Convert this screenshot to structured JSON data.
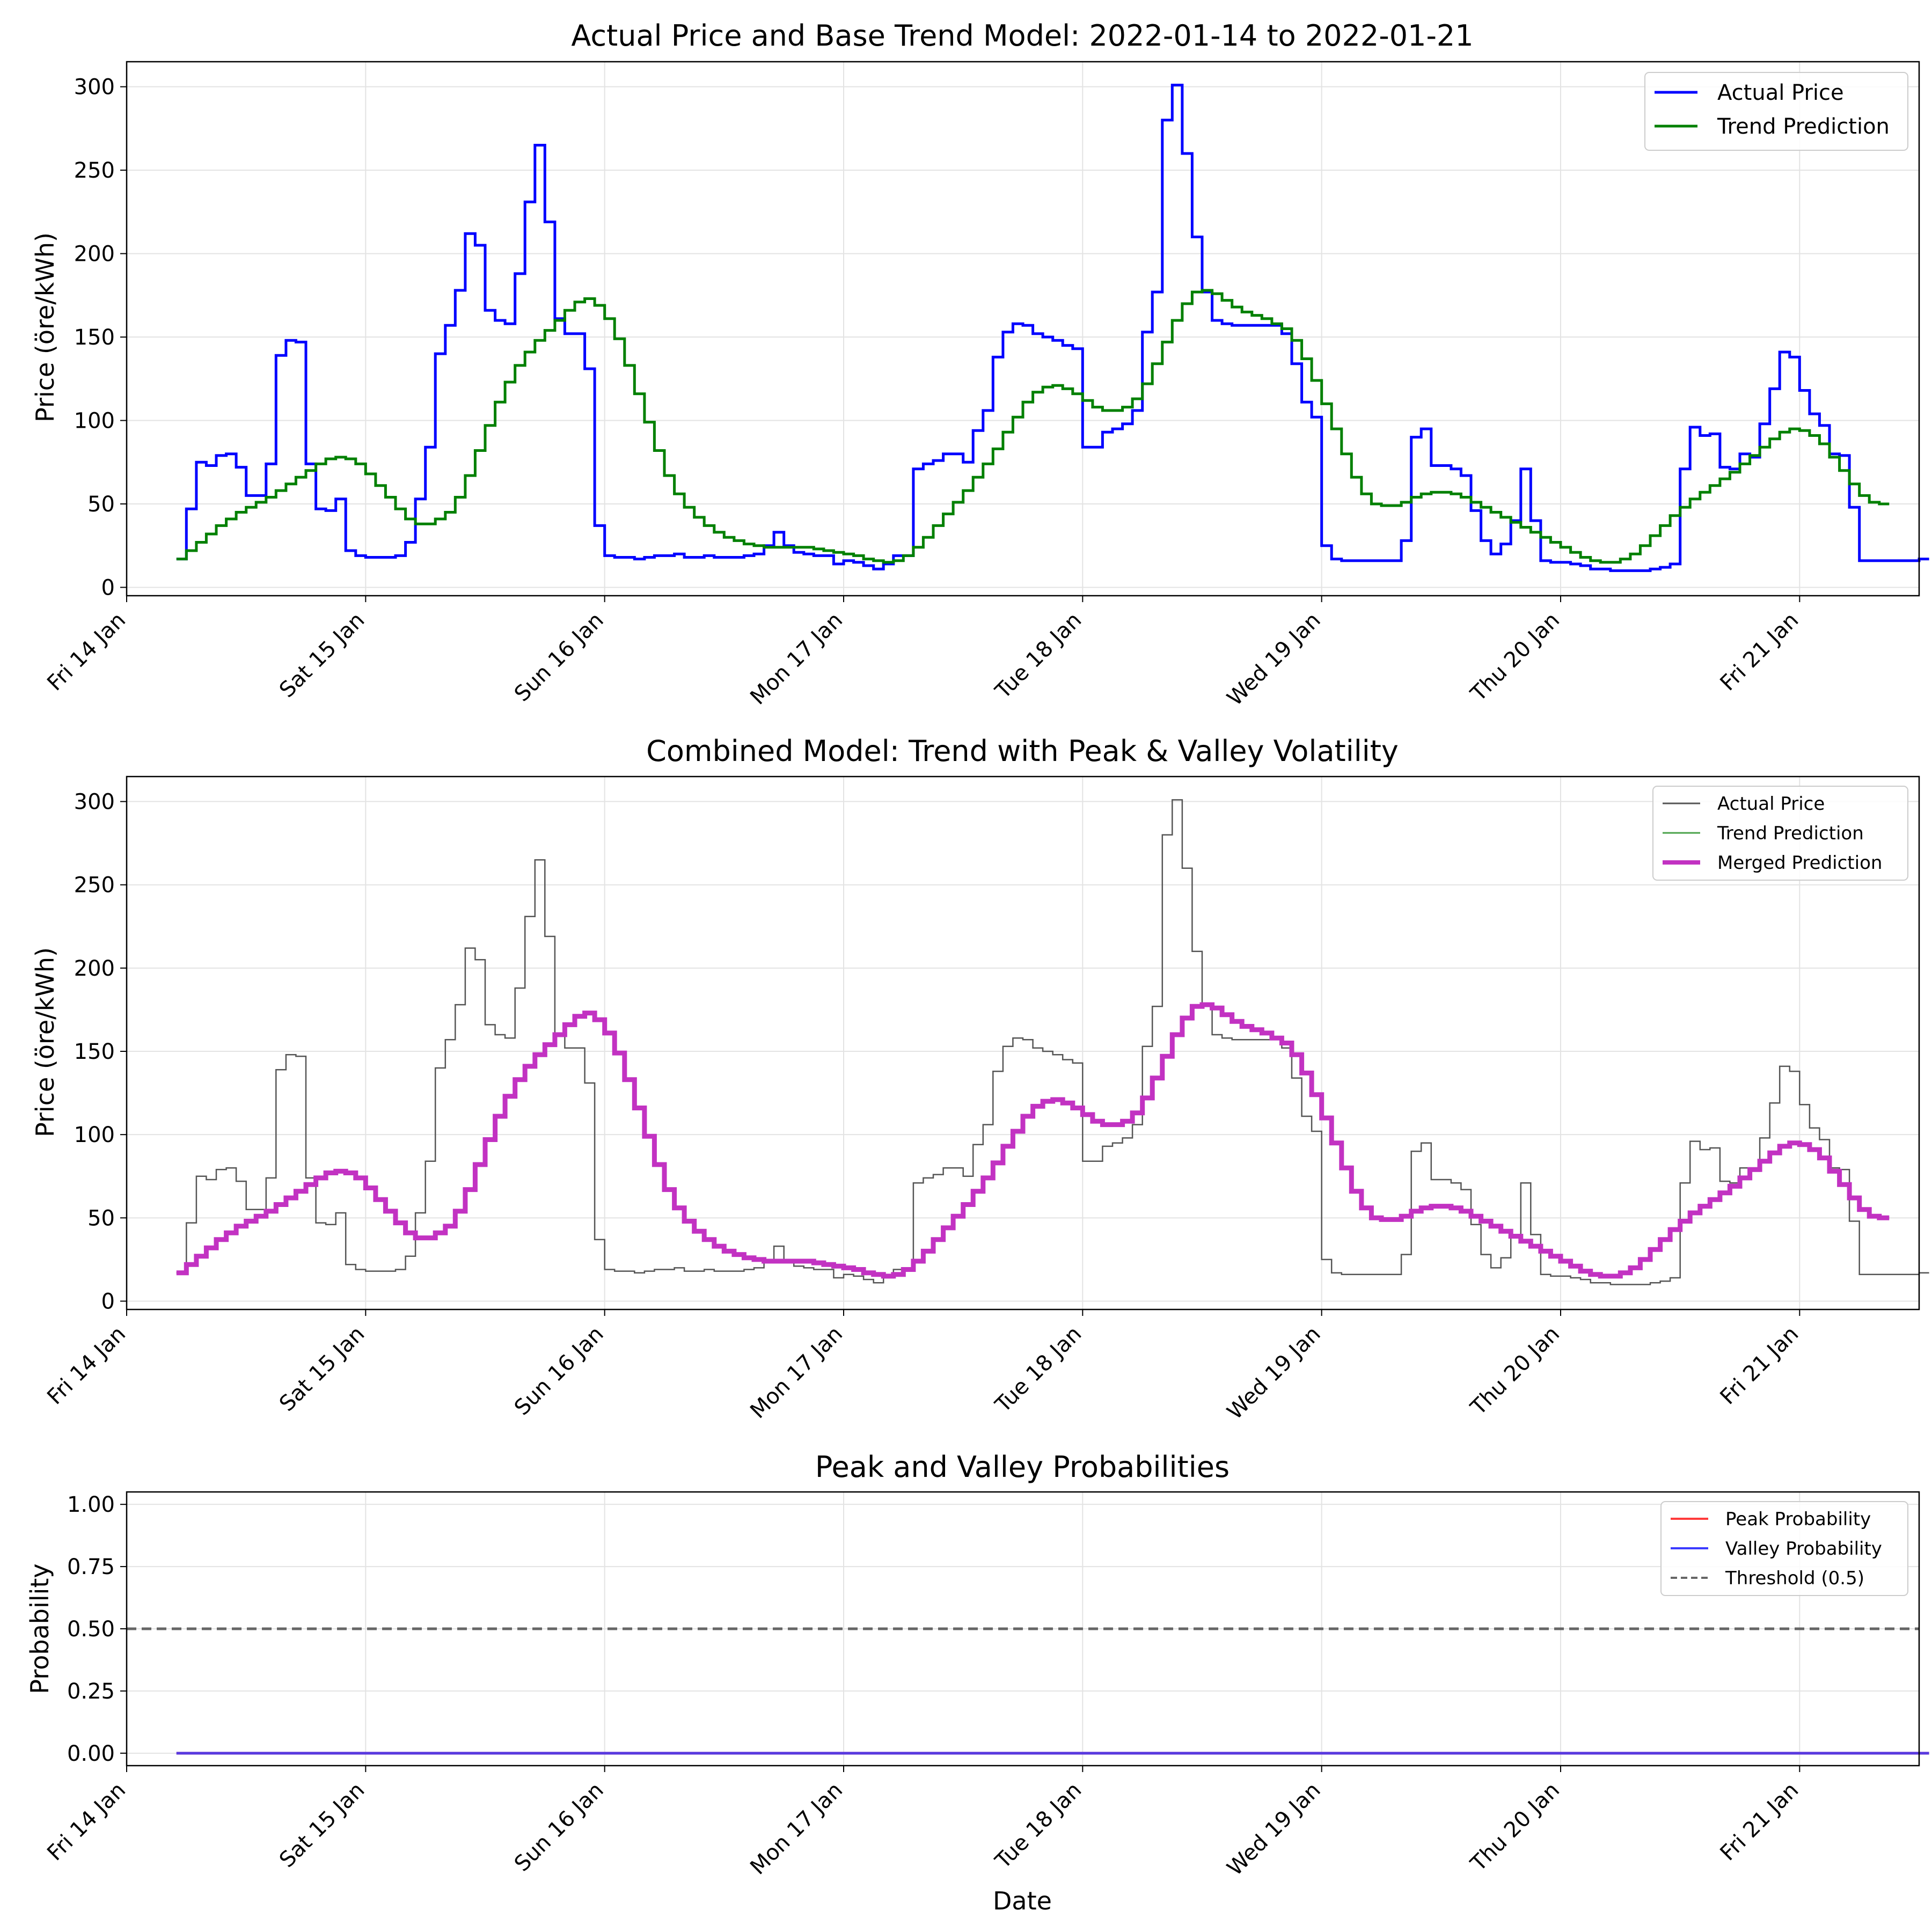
{
  "figure": {
    "x_tick_labels": [
      "Fri 14 Jan",
      "Sat 15 Jan",
      "Sun 16 Jan",
      "Mon 17 Jan",
      "Tue 18 Jan",
      "Wed 19 Jan",
      "Thu 20 Jan",
      "Fri 21 Jan"
    ]
  },
  "chart_data": [
    {
      "type": "line",
      "title": "Actual Price and Base Trend Model: 2022-01-14 to 2022-01-21",
      "xlabel": "",
      "ylabel": "Price (öre/kWh)",
      "x_unit": "datetime",
      "xlim": [
        "2022-01-14T00:00",
        "2022-01-21T12:00"
      ],
      "ylim": [
        -5,
        315
      ],
      "yticks": [
        0,
        50,
        100,
        150,
        200,
        250,
        300
      ],
      "grid": true,
      "legend_position": "top-right",
      "x_start": "2022-01-14T05:00",
      "x_step_hours": 1,
      "series": [
        {
          "name": "Actual Price",
          "color": "#0000ff",
          "style": "step",
          "values": [
            17,
            47,
            75,
            73,
            79,
            80,
            72,
            55,
            55,
            74,
            139,
            148,
            147,
            74,
            47,
            46,
            53,
            22,
            19,
            18,
            18,
            18,
            19,
            27,
            53,
            84,
            140,
            157,
            178,
            212,
            205,
            166,
            160,
            158,
            188,
            231,
            265,
            219,
            161,
            152,
            152,
            131,
            37,
            19,
            18,
            18,
            17,
            18,
            19,
            19,
            20,
            18,
            18,
            19,
            18,
            18,
            18,
            19,
            20,
            25,
            33,
            25,
            21,
            20,
            19,
            19,
            14,
            16,
            15,
            13,
            11,
            14,
            19,
            19,
            71,
            74,
            76,
            80,
            80,
            75,
            94,
            106,
            138,
            153,
            158,
            157,
            152,
            150,
            148,
            145,
            143,
            84,
            84,
            93,
            95,
            98,
            106,
            153,
            177,
            280,
            301,
            260,
            210,
            177,
            160,
            158,
            157,
            157,
            157,
            157,
            157,
            152,
            134,
            111,
            102,
            25,
            17,
            16,
            16,
            16,
            16,
            16,
            16,
            28,
            90,
            95,
            73,
            73,
            71,
            67,
            46,
            28,
            20,
            26,
            40,
            71,
            40,
            16,
            15,
            15,
            14,
            13,
            11,
            11,
            10,
            10,
            10,
            10,
            11,
            12,
            14,
            71,
            96,
            91,
            92,
            72,
            71,
            80,
            78,
            98,
            119,
            141,
            138,
            118,
            104,
            97,
            80,
            79,
            48,
            16,
            16,
            16,
            16,
            16,
            16,
            17,
            17
          ]
        },
        {
          "name": "Trend Prediction",
          "color": "#008000",
          "style": "step",
          "values": [
            17,
            22,
            27,
            32,
            37,
            41,
            45,
            48,
            51,
            54,
            58,
            62,
            66,
            70,
            74,
            77,
            78,
            77,
            74,
            68,
            61,
            54,
            47,
            41,
            38,
            38,
            41,
            45,
            54,
            67,
            82,
            97,
            111,
            123,
            133,
            141,
            148,
            154,
            160,
            166,
            171,
            173,
            169,
            161,
            149,
            133,
            116,
            99,
            82,
            67,
            56,
            48,
            42,
            37,
            33,
            30,
            28,
            26,
            25,
            24,
            24,
            24,
            24,
            24,
            23,
            22,
            21,
            20,
            19,
            17,
            16,
            15,
            16,
            19,
            24,
            30,
            37,
            44,
            51,
            58,
            66,
            74,
            83,
            93,
            102,
            111,
            117,
            120,
            121,
            119,
            116,
            112,
            108,
            106,
            106,
            108,
            113,
            122,
            134,
            147,
            160,
            170,
            177,
            178,
            176,
            172,
            168,
            165,
            163,
            161,
            158,
            155,
            148,
            137,
            124,
            110,
            95,
            80,
            66,
            56,
            50,
            49,
            49,
            51,
            54,
            56,
            57,
            57,
            56,
            54,
            51,
            48,
            45,
            42,
            39,
            36,
            33,
            30,
            27,
            24,
            21,
            18,
            16,
            15,
            15,
            17,
            20,
            25,
            31,
            37,
            43,
            48,
            53,
            57,
            61,
            65,
            69,
            74,
            79,
            84,
            89,
            93,
            95,
            94,
            91,
            86,
            78,
            70,
            62,
            55,
            51,
            50,
            50
          ]
        }
      ]
    },
    {
      "type": "line",
      "title": "Combined Model: Trend with Peak & Valley Volatility",
      "xlabel": "",
      "ylabel": "Price (öre/kWh)",
      "x_unit": "datetime",
      "xlim": [
        "2022-01-14T00:00",
        "2022-01-21T12:00"
      ],
      "ylim": [
        -5,
        315
      ],
      "yticks": [
        0,
        50,
        100,
        150,
        200,
        250,
        300
      ],
      "grid": true,
      "legend_position": "top-right",
      "series": [
        {
          "name": "Actual Price",
          "color": "#555555",
          "style": "step",
          "same_values_as": "Actual Price"
        },
        {
          "name": "Trend Prediction",
          "color": "#4aa24a",
          "style": "step",
          "same_values_as": "Trend Prediction"
        },
        {
          "name": "Merged Prediction",
          "color": "#c232c2",
          "style": "step",
          "same_values_as": "Trend Prediction"
        }
      ]
    },
    {
      "type": "line",
      "title": "Peak and Valley Probabilities",
      "xlabel": "Date",
      "ylabel": "Probability",
      "x_unit": "datetime",
      "xlim": [
        "2022-01-14T00:00",
        "2022-01-21T12:00"
      ],
      "ylim": [
        -0.05,
        1.05
      ],
      "yticks": [
        "0.00",
        "0.25",
        "0.50",
        "0.75",
        "1.00"
      ],
      "grid": true,
      "legend_position": "top-right",
      "series": [
        {
          "name": "Peak Probability",
          "color": "#ff3b3b",
          "constant_value": 0
        },
        {
          "name": "Valley Probability",
          "color": "#3b3bff",
          "constant_value": 0
        },
        {
          "name": "Threshold (0.5)",
          "color": "#666666",
          "style": "dashed",
          "constant_value": 0.5
        }
      ]
    }
  ]
}
